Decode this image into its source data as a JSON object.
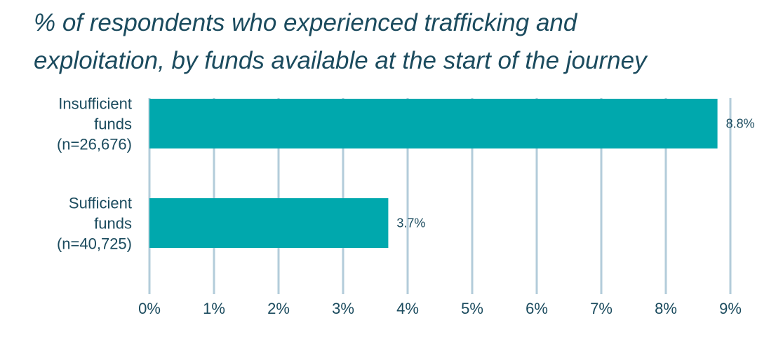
{
  "chart_data": {
    "type": "bar",
    "orientation": "horizontal",
    "title_lines": [
      "% of respondents who experienced trafficking and",
      "exploitation, by funds available at the start of the journey"
    ],
    "categories": [
      [
        "Insufficient",
        "funds",
        "(n=26,676)"
      ],
      [
        "Sufficient",
        "funds",
        "(n=40,725)"
      ]
    ],
    "values": [
      8.8,
      3.7
    ],
    "value_labels": [
      "8.8%",
      "3.7%"
    ],
    "xlim": [
      0,
      9
    ],
    "x_ticks": [
      0,
      1,
      2,
      3,
      4,
      5,
      6,
      7,
      8,
      9
    ],
    "x_tick_labels": [
      "0%",
      "1%",
      "2%",
      "3%",
      "4%",
      "5%",
      "6%",
      "7%",
      "8%",
      "9%"
    ],
    "grid": true,
    "colors": {
      "bar": "#00a8ad",
      "grid": "#b3ccda",
      "text": "#1b4b5e"
    }
  }
}
